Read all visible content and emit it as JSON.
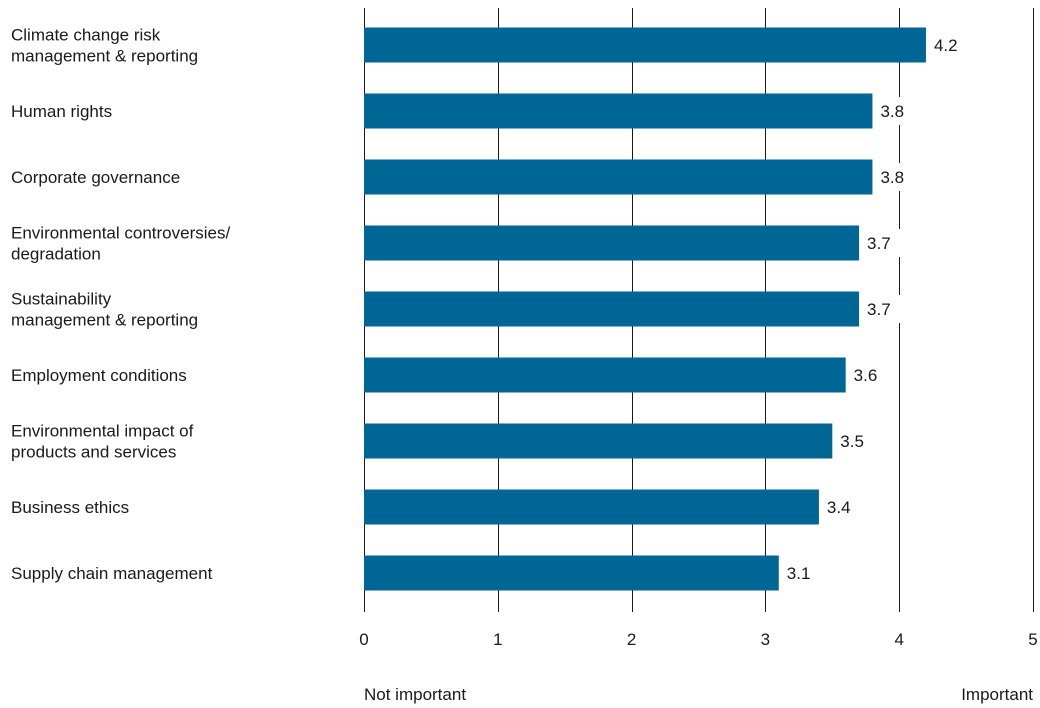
{
  "chart_data": {
    "type": "bar",
    "orientation": "horizontal",
    "categories": [
      [
        "Climate change risk",
        "management & reporting"
      ],
      [
        "Human rights"
      ],
      [
        "Corporate governance"
      ],
      [
        "Environmental controversies/",
        "degradation"
      ],
      [
        "Sustainability",
        "management & reporting"
      ],
      [
        "Employment conditions"
      ],
      [
        "Environmental impact of",
        "products and services"
      ],
      [
        "Business ethics"
      ],
      [
        "Supply chain management"
      ]
    ],
    "values": [
      4.2,
      3.8,
      3.8,
      3.7,
      3.7,
      3.6,
      3.5,
      3.4,
      3.1
    ],
    "value_labels": [
      "4.2",
      "3.8",
      "3.8",
      "3.7",
      "3.7",
      "3.6",
      "3.5",
      "3.4",
      "3.1"
    ],
    "xlim": [
      0,
      5
    ],
    "xticks": [
      "0",
      "1",
      "2",
      "3",
      "4",
      "5"
    ],
    "scale_low_label": "Not important",
    "scale_high_label": "Important",
    "bar_color": "#006695",
    "grid": true
  }
}
